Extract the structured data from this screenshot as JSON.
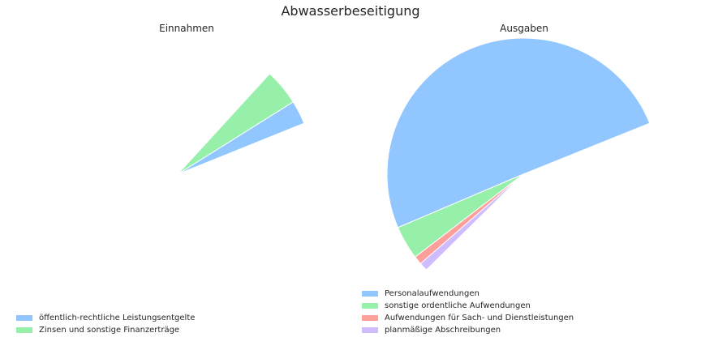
{
  "title": "Abwasserbeseitigung",
  "colors": [
    "#92c6ff",
    "#97f0aa",
    "#ff9f9a",
    "#d0bbff"
  ],
  "chart_data": [
    {
      "type": "pie",
      "title": "Einnahmen",
      "labels": [
        "öffentlich-rechtliche Leistungsentgelte",
        "Zinsen und sonstige Finanzerträge"
      ],
      "values": [
        2.8,
        4.3
      ],
      "start_angle_deg": 0,
      "note_values": "angular shares in percent of full circle; remaining share not drawn",
      "legend_position": "lower-left"
    },
    {
      "type": "pie",
      "title": "Ausgaben",
      "labels": [
        "Personalaufwendungen",
        "sonstige ordentliche Aufwendungen",
        "Aufwendungen für Sach- und Dienstleistungen",
        "planmäßige Abschreibungen"
      ],
      "values": [
        50.3,
        4.0,
        1.0,
        1.0
      ],
      "start_angle_deg": 0,
      "legend_position": "lower-left"
    }
  ]
}
